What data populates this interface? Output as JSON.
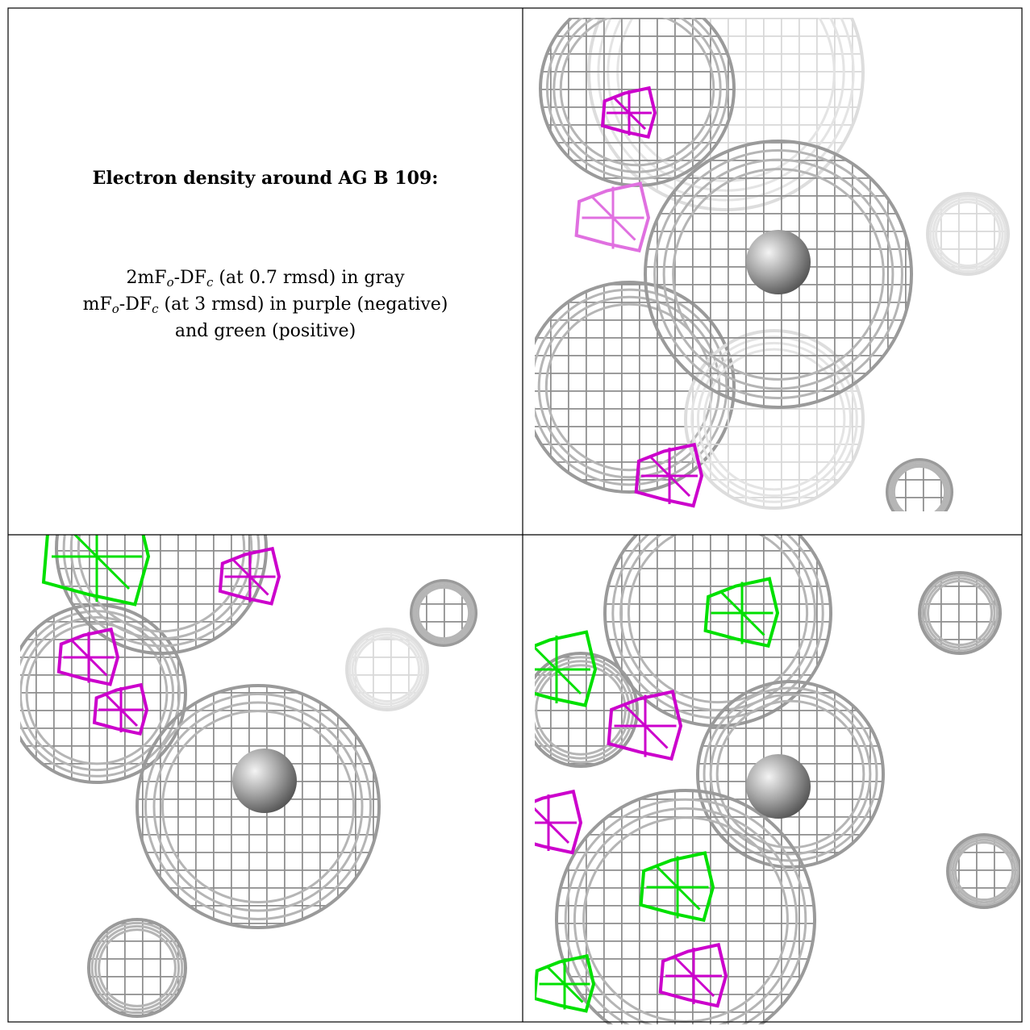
{
  "caption": {
    "title": "Electron density around AG B 109:",
    "lines": [
      {
        "parts": [
          "2mF",
          "o",
          "-DF",
          "c",
          " (at 0.7 rmsd) in gray"
        ]
      },
      {
        "parts": [
          "mF",
          "o",
          "-DF",
          "c",
          " (at 3 rmsd) in purple (negative)"
        ]
      },
      {
        "parts": [
          "and green (positive)"
        ]
      }
    ]
  }
}
